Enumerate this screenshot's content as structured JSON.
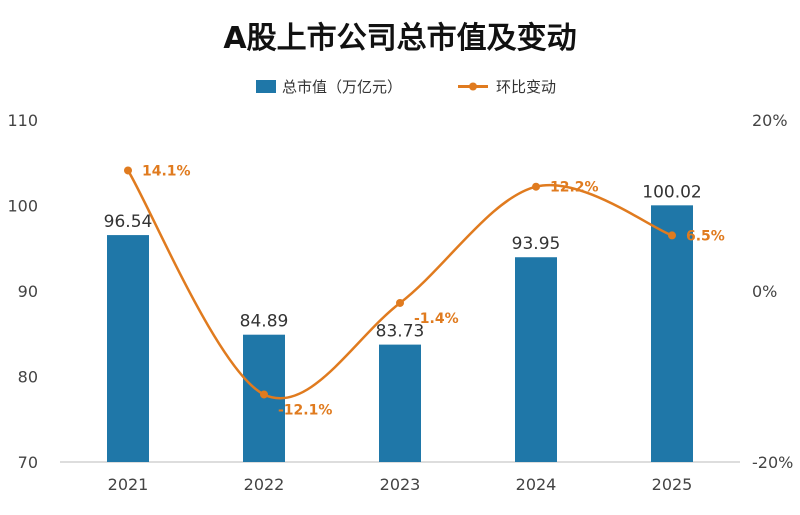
{
  "chart_data": {
    "type": "bar",
    "title": "A股上市公司总市值及变动",
    "categories": [
      "2021",
      "2022",
      "2023",
      "2024",
      "2025"
    ],
    "series": [
      {
        "name": "总市值（万亿元）",
        "type": "bar",
        "axis": "left",
        "values": [
          96.54,
          84.89,
          83.73,
          93.95,
          100.02
        ],
        "labels": [
          "96.54",
          "84.89",
          "83.73",
          "93.95",
          "100.02"
        ]
      },
      {
        "name": "环比变动",
        "type": "line",
        "axis": "right",
        "smooth": true,
        "values": [
          14.1,
          -12.1,
          -1.4,
          12.2,
          6.5
        ],
        "labels": [
          "14.1%",
          "-12.1%",
          "-1.4%",
          "12.2%",
          "6.5%"
        ]
      }
    ],
    "y_left": {
      "ylim": [
        70,
        110
      ],
      "ticks": [
        "70",
        "80",
        "90",
        "100",
        "110"
      ]
    },
    "y_right": {
      "ylim": [
        -20,
        20
      ],
      "ticks": [
        "-20%",
        "0%",
        "20%"
      ]
    },
    "legend_position": "top-center",
    "grid": false
  },
  "colors": {
    "bar": "#1F77A8",
    "line": "#E07B1F",
    "axis": "#BBBBBB"
  }
}
